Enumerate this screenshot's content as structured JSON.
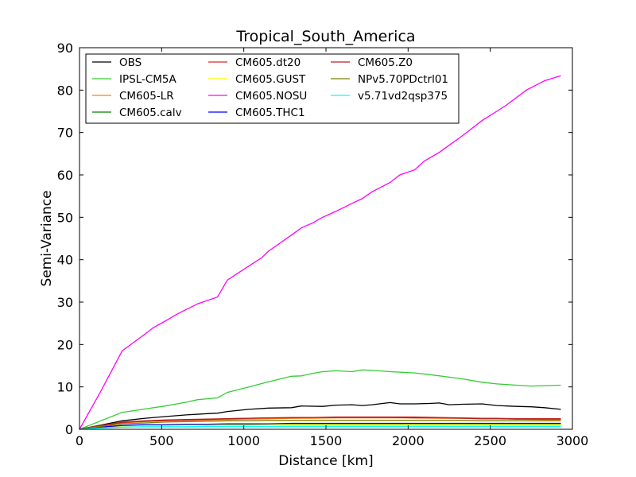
{
  "chart_data": {
    "type": "line",
    "title": "Tropical_South_America",
    "xlabel": "Distance [km]",
    "ylabel": "Semi-Variance",
    "xlim": [
      0,
      3000
    ],
    "ylim": [
      0,
      90
    ],
    "xticks": [
      0,
      500,
      1000,
      1500,
      2000,
      2500,
      3000
    ],
    "yticks": [
      0,
      10,
      20,
      30,
      40,
      50,
      60,
      70,
      80,
      90
    ],
    "grid": false,
    "legend": {
      "placement": "top-left",
      "columns": 3
    },
    "series": [
      {
        "name": "OBS",
        "color": "#000000",
        "x": [
          0,
          130,
          260,
          400,
          520,
          650,
          780,
          840,
          900,
          1030,
          1150,
          1290,
          1350,
          1480,
          1560,
          1660,
          1720,
          1780,
          1890,
          1950,
          2040,
          2130,
          2190,
          2250,
          2330,
          2450,
          2540,
          2660,
          2750,
          2830,
          2930
        ],
        "y": [
          0,
          1.0,
          2.0,
          2.6,
          3.0,
          3.4,
          3.7,
          3.8,
          4.2,
          4.7,
          5.0,
          5.1,
          5.5,
          5.4,
          5.7,
          5.8,
          5.6,
          5.8,
          6.3,
          6.0,
          6.0,
          6.1,
          6.2,
          5.8,
          5.9,
          6.0,
          5.6,
          5.4,
          5.3,
          5.1,
          4.7
        ]
      },
      {
        "name": "IPSL-CM5A",
        "color": "#33cc33",
        "x": [
          0,
          130,
          260,
          400,
          520,
          650,
          720,
          840,
          900,
          1030,
          1150,
          1290,
          1350,
          1420,
          1480,
          1560,
          1660,
          1720,
          1780,
          1890,
          2040,
          2130,
          2250,
          2330,
          2450,
          2540,
          2660,
          2750,
          2830,
          2930
        ],
        "y": [
          0,
          2.0,
          4.0,
          4.8,
          5.5,
          6.4,
          7.0,
          7.4,
          8.7,
          10.0,
          11.2,
          12.5,
          12.6,
          13.2,
          13.6,
          13.8,
          13.6,
          14.0,
          13.9,
          13.6,
          13.3,
          12.9,
          12.3,
          11.9,
          11.1,
          10.7,
          10.4,
          10.2,
          10.3,
          10.4
        ]
      },
      {
        "name": "CM605-LR",
        "color": "#ff7f0e",
        "x": [
          0,
          130,
          260,
          400,
          520,
          650,
          780,
          900,
          1030,
          1150,
          1290,
          1420,
          1560,
          1720,
          1890,
          2040,
          2190,
          2330,
          2450,
          2540,
          2660,
          2830,
          2930
        ],
        "y": [
          0,
          0.8,
          1.5,
          1.8,
          2.0,
          2.1,
          2.2,
          2.3,
          2.4,
          2.5,
          2.6,
          2.6,
          2.7,
          2.7,
          2.7,
          2.7,
          2.6,
          2.6,
          2.5,
          2.5,
          2.4,
          2.3,
          2.3
        ]
      },
      {
        "name": "CM605.calv",
        "color": "#008000",
        "x": [
          0,
          130,
          260,
          400,
          520,
          650,
          780,
          900,
          1030,
          1150,
          1290,
          1420,
          1560,
          1720,
          1890,
          2040,
          2190,
          2330,
          2450,
          2540,
          2660,
          2830,
          2930
        ],
        "y": [
          0,
          0.5,
          0.9,
          1.0,
          1.1,
          1.1,
          1.1,
          1.2,
          1.2,
          1.2,
          1.2,
          1.3,
          1.3,
          1.3,
          1.3,
          1.3,
          1.3,
          1.3,
          1.3,
          1.3,
          1.3,
          1.3,
          1.3
        ]
      },
      {
        "name": "CM605.dt20",
        "color": "#d62728",
        "x": [
          0,
          130,
          260,
          400,
          520,
          650,
          780,
          900,
          1030,
          1150,
          1290,
          1420,
          1560,
          1720,
          1890,
          2040,
          2190,
          2330,
          2450,
          2540,
          2660,
          2830,
          2930
        ],
        "y": [
          0,
          0.9,
          1.6,
          1.9,
          2.1,
          2.2,
          2.3,
          2.5,
          2.6,
          2.7,
          2.8,
          2.8,
          2.9,
          2.9,
          2.9,
          2.9,
          2.8,
          2.7,
          2.6,
          2.6,
          2.5,
          2.5,
          2.5
        ]
      },
      {
        "name": "CM605.GUST",
        "color": "#ffff00",
        "x": [
          0,
          130,
          260,
          400,
          520,
          650,
          780,
          900,
          1030,
          1150,
          1290,
          1420,
          1560,
          1720,
          1890,
          2040,
          2190,
          2330,
          2450,
          2540,
          2660,
          2830,
          2930
        ],
        "y": [
          0,
          0.4,
          0.8,
          0.9,
          0.9,
          1.0,
          1.0,
          1.0,
          1.0,
          1.1,
          1.1,
          1.1,
          1.1,
          1.1,
          1.1,
          1.1,
          1.1,
          1.1,
          1.1,
          1.1,
          1.1,
          1.1,
          1.1
        ]
      },
      {
        "name": "CM605.NOSU",
        "color": "#ff00ff",
        "x": [
          0,
          130,
          260,
          400,
          450,
          520,
          600,
          720,
          840,
          900,
          1030,
          1110,
          1150,
          1290,
          1350,
          1420,
          1480,
          1560,
          1660,
          1720,
          1780,
          1890,
          1950,
          2040,
          2100,
          2190,
          2250,
          2330,
          2450,
          2540,
          2600,
          2720,
          2830,
          2930
        ],
        "y": [
          0,
          9.0,
          18.5,
          22.5,
          24.0,
          25.5,
          27.3,
          29.6,
          31.2,
          35.2,
          38.5,
          40.5,
          42.0,
          45.8,
          47.5,
          48.7,
          50.0,
          51.4,
          53.3,
          54.4,
          56.0,
          58.2,
          60.0,
          61.2,
          63.3,
          65.3,
          67.0,
          69.2,
          72.8,
          75.0,
          76.5,
          80.0,
          82.2,
          83.4
        ]
      },
      {
        "name": "CM605.THC1",
        "color": "#0000ff",
        "x": [
          0,
          130,
          260,
          400,
          520,
          650,
          780,
          900,
          1030,
          1150,
          1290,
          1420,
          1560,
          1720,
          1890,
          2040,
          2190,
          2330,
          2450,
          2540,
          2660,
          2830,
          2930
        ],
        "y": [
          0,
          0.5,
          0.9,
          1.1,
          1.1,
          1.2,
          1.2,
          1.3,
          1.3,
          1.3,
          1.4,
          1.4,
          1.4,
          1.4,
          1.4,
          1.4,
          1.4,
          1.4,
          1.4,
          1.4,
          1.4,
          1.4,
          1.4
        ]
      },
      {
        "name": "CM605.Z0",
        "color": "#b22222",
        "x": [
          0,
          130,
          260,
          400,
          520,
          650,
          780,
          900,
          1030,
          1150,
          1290,
          1420,
          1560,
          1720,
          1890,
          2040,
          2190,
          2330,
          2450,
          2540,
          2660,
          2830,
          2930
        ],
        "y": [
          0,
          0.9,
          1.7,
          2.0,
          2.2,
          2.3,
          2.4,
          2.5,
          2.6,
          2.7,
          2.7,
          2.8,
          2.8,
          2.8,
          2.8,
          2.7,
          2.7,
          2.6,
          2.5,
          2.5,
          2.4,
          2.4,
          2.4
        ]
      },
      {
        "name": "NPv5.70PDctrl01",
        "color": "#808000",
        "x": [
          0,
          130,
          260,
          400,
          520,
          650,
          780,
          900,
          1030,
          1150,
          1290,
          1420,
          1560,
          1720,
          1890,
          2040,
          2190,
          2330,
          2450,
          2540,
          2660,
          2830,
          2930
        ],
        "y": [
          0,
          0.7,
          1.3,
          1.5,
          1.7,
          1.8,
          1.9,
          2.0,
          2.0,
          2.1,
          2.1,
          2.1,
          2.1,
          2.1,
          2.1,
          2.1,
          2.1,
          2.1,
          2.0,
          2.0,
          2.0,
          2.0,
          2.0
        ]
      },
      {
        "name": "v5.71vd2qsp375",
        "color": "#00ffff",
        "x": [
          0,
          130,
          260,
          400,
          520,
          650,
          780,
          900,
          1030,
          1150,
          1290,
          1420,
          1560,
          1720,
          1890,
          2040,
          2190,
          2330,
          2450,
          2540,
          2660,
          2830,
          2930
        ],
        "y": [
          0,
          0.3,
          0.5,
          0.6,
          0.6,
          0.6,
          0.7,
          0.7,
          0.7,
          0.7,
          0.7,
          0.7,
          0.7,
          0.7,
          0.7,
          0.7,
          0.7,
          0.7,
          0.7,
          0.7,
          0.7,
          0.7,
          0.7
        ]
      }
    ]
  }
}
